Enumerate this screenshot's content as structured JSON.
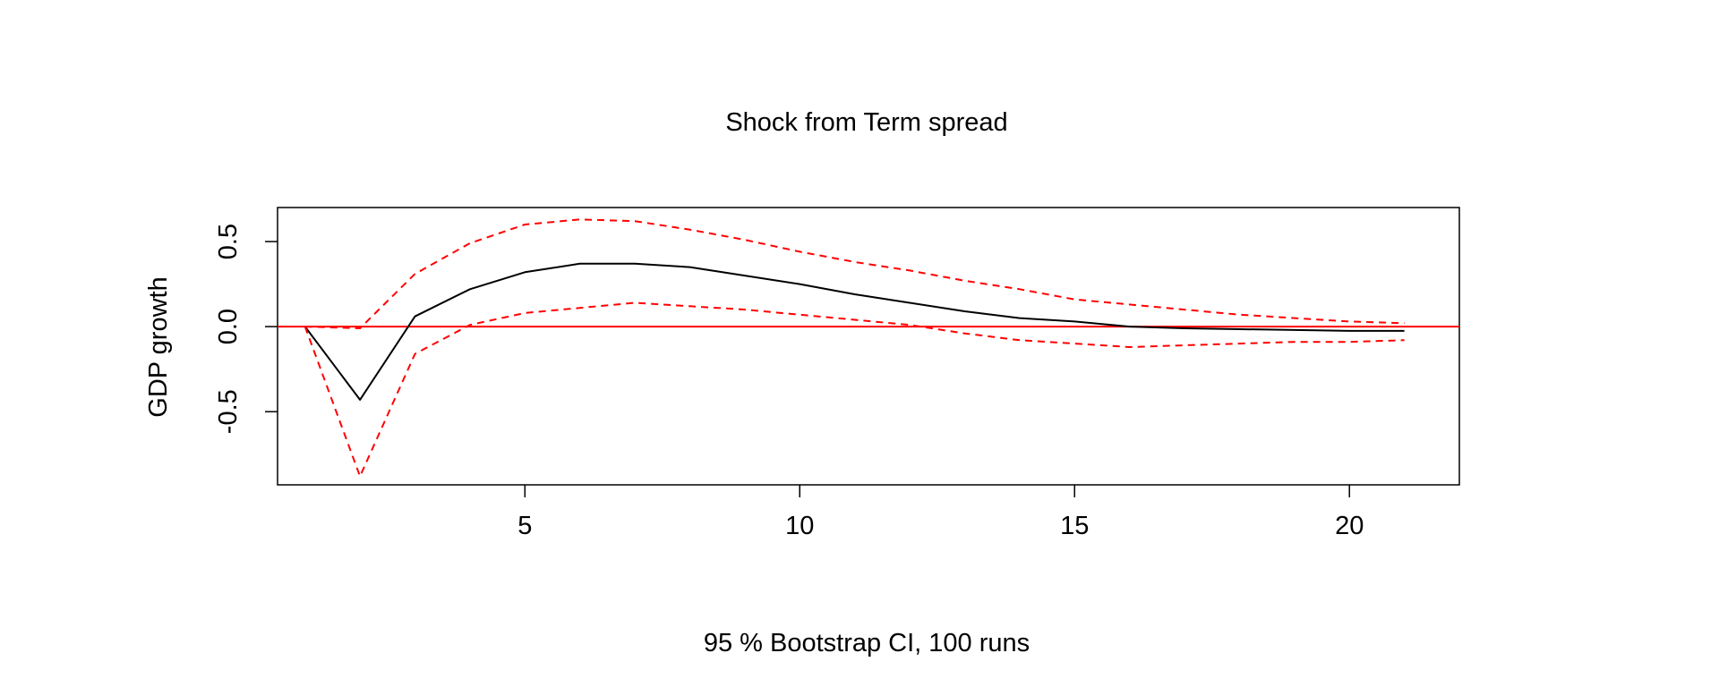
{
  "chart_data": {
    "type": "line",
    "title": "Shock from Term spread",
    "xlabel": "95 % Bootstrap CI,  100 runs",
    "ylabel": "GDP growth",
    "xlim": [
      0.5,
      22
    ],
    "ylim": [
      -0.93,
      0.7
    ],
    "x_ticks": [
      5,
      10,
      15,
      20
    ],
    "x_tick_labels": [
      "5",
      "10",
      "15",
      "20"
    ],
    "y_ticks": [
      -0.5,
      0.0,
      0.5
    ],
    "y_tick_labels": [
      "-0.5",
      "0.0",
      "0.5"
    ],
    "grid": false,
    "legend": "none",
    "x": [
      1,
      2,
      3,
      4,
      5,
      6,
      7,
      8,
      9,
      10,
      11,
      12,
      13,
      14,
      15,
      16,
      17,
      18,
      19,
      20,
      21
    ],
    "reference_line": {
      "y": 0,
      "color": "#ff0000"
    },
    "series": [
      {
        "style": "solid",
        "color": "#000000",
        "values": [
          0.0,
          -0.43,
          0.06,
          0.22,
          0.32,
          0.37,
          0.37,
          0.35,
          0.3,
          0.25,
          0.19,
          0.14,
          0.09,
          0.05,
          0.03,
          0.0,
          -0.01,
          -0.015,
          -0.02,
          -0.025,
          -0.025
        ]
      },
      {
        "style": "dashed",
        "color": "#ff0000",
        "values": [
          0.0,
          -0.01,
          0.31,
          0.49,
          0.6,
          0.63,
          0.62,
          0.57,
          0.51,
          0.44,
          0.38,
          0.33,
          0.27,
          0.22,
          0.16,
          0.13,
          0.1,
          0.07,
          0.05,
          0.03,
          0.02
        ]
      },
      {
        "style": "dashed",
        "color": "#ff0000",
        "values": [
          0.0,
          -0.88,
          -0.16,
          0.01,
          0.08,
          0.11,
          0.14,
          0.12,
          0.1,
          0.07,
          0.04,
          0.01,
          -0.04,
          -0.08,
          -0.1,
          -0.12,
          -0.11,
          -0.1,
          -0.09,
          -0.09,
          -0.08
        ]
      }
    ]
  }
}
